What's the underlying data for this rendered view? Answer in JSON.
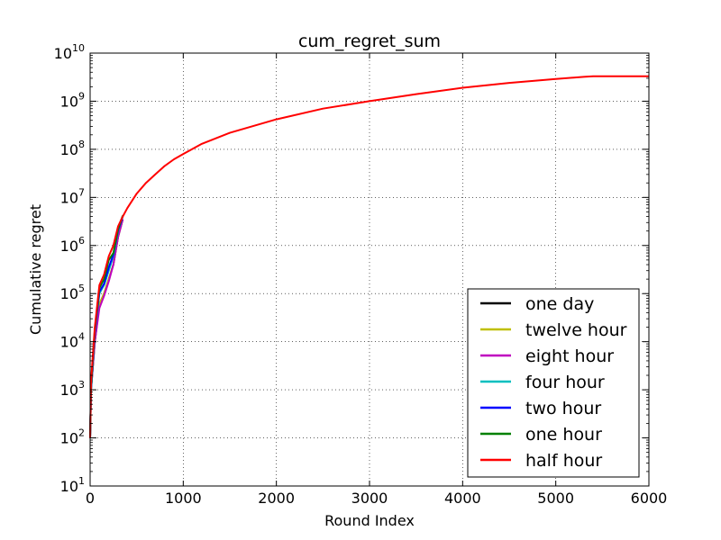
{
  "chart_data": {
    "type": "line",
    "title": "cum_regret_sum",
    "xlabel": "Round Index",
    "ylabel": "Cumulative regret",
    "xlim": [
      0,
      6000
    ],
    "ylim": [
      10,
      10000000000
    ],
    "yscale": "log",
    "grid": true,
    "legend_position": "lower-right",
    "x_ticks": [
      "0",
      "1000",
      "2000",
      "3000",
      "4000",
      "5000",
      "6000"
    ],
    "y_ticks": [
      {
        "base": "10",
        "exp": "1"
      },
      {
        "base": "10",
        "exp": "2"
      },
      {
        "base": "10",
        "exp": "3"
      },
      {
        "base": "10",
        "exp": "4"
      },
      {
        "base": "10",
        "exp": "5"
      },
      {
        "base": "10",
        "exp": "6"
      },
      {
        "base": "10",
        "exp": "7"
      },
      {
        "base": "10",
        "exp": "8"
      },
      {
        "base": "10",
        "exp": "9"
      },
      {
        "base": "10",
        "exp": "10"
      }
    ],
    "series": [
      {
        "name": "one day",
        "color": "#000000",
        "x": [
          0,
          10,
          50,
          100,
          150,
          200,
          250,
          300,
          350
        ],
        "y": [
          100,
          1000,
          10000,
          60000,
          100000,
          200000,
          400000,
          1500000,
          3500000
        ]
      },
      {
        "name": "twelve hour",
        "color": "#bfbf00",
        "x": [
          0,
          10,
          50,
          100,
          150,
          200,
          250,
          300,
          350
        ],
        "y": [
          100,
          1000,
          10000,
          60000,
          100000,
          200000,
          400000,
          1500000,
          3500000
        ]
      },
      {
        "name": "eight hour",
        "color": "#bf00bf",
        "x": [
          0,
          10,
          50,
          100,
          150,
          200,
          250,
          300,
          350
        ],
        "y": [
          100,
          1000,
          10000,
          50000,
          90000,
          180000,
          400000,
          1500000,
          3500000
        ]
      },
      {
        "name": "four hour",
        "color": "#00bfbf",
        "x": [
          0,
          10,
          50,
          100,
          150,
          200,
          250,
          300,
          350
        ],
        "y": [
          100,
          1000,
          15000,
          100000,
          150000,
          300000,
          600000,
          2000000,
          4000000
        ]
      },
      {
        "name": "two hour",
        "color": "#0000ff",
        "x": [
          0,
          10,
          50,
          100,
          150,
          200,
          250,
          300,
          350
        ],
        "y": [
          100,
          1100,
          16000,
          110000,
          160000,
          350000,
          650000,
          2100000,
          4000000
        ]
      },
      {
        "name": "one hour",
        "color": "#008000",
        "x": [
          0,
          10,
          50,
          100,
          150,
          200,
          250,
          300,
          350
        ],
        "y": [
          100,
          1200,
          18000,
          130000,
          200000,
          500000,
          700000,
          2200000,
          4200000
        ]
      },
      {
        "name": "half hour",
        "color": "#ff0000",
        "x": [
          0,
          10,
          50,
          100,
          150,
          200,
          250,
          300,
          350,
          400,
          500,
          600,
          700,
          800,
          900,
          1000,
          1200,
          1500,
          2000,
          2500,
          3000,
          3500,
          4000,
          4500,
          5000,
          5300,
          5400,
          5500,
          6000
        ],
        "y": [
          100,
          1500,
          20000,
          150000,
          250000,
          600000,
          1000000,
          2500000,
          4000000,
          6000000,
          12000000,
          20000000,
          30000000,
          45000000,
          62000000,
          80000000,
          130000000,
          220000000,
          420000000,
          700000000,
          1000000000,
          1400000000,
          1900000000,
          2400000000,
          2900000000,
          3200000000,
          3300000000,
          3300000000,
          3300000000
        ]
      }
    ]
  }
}
